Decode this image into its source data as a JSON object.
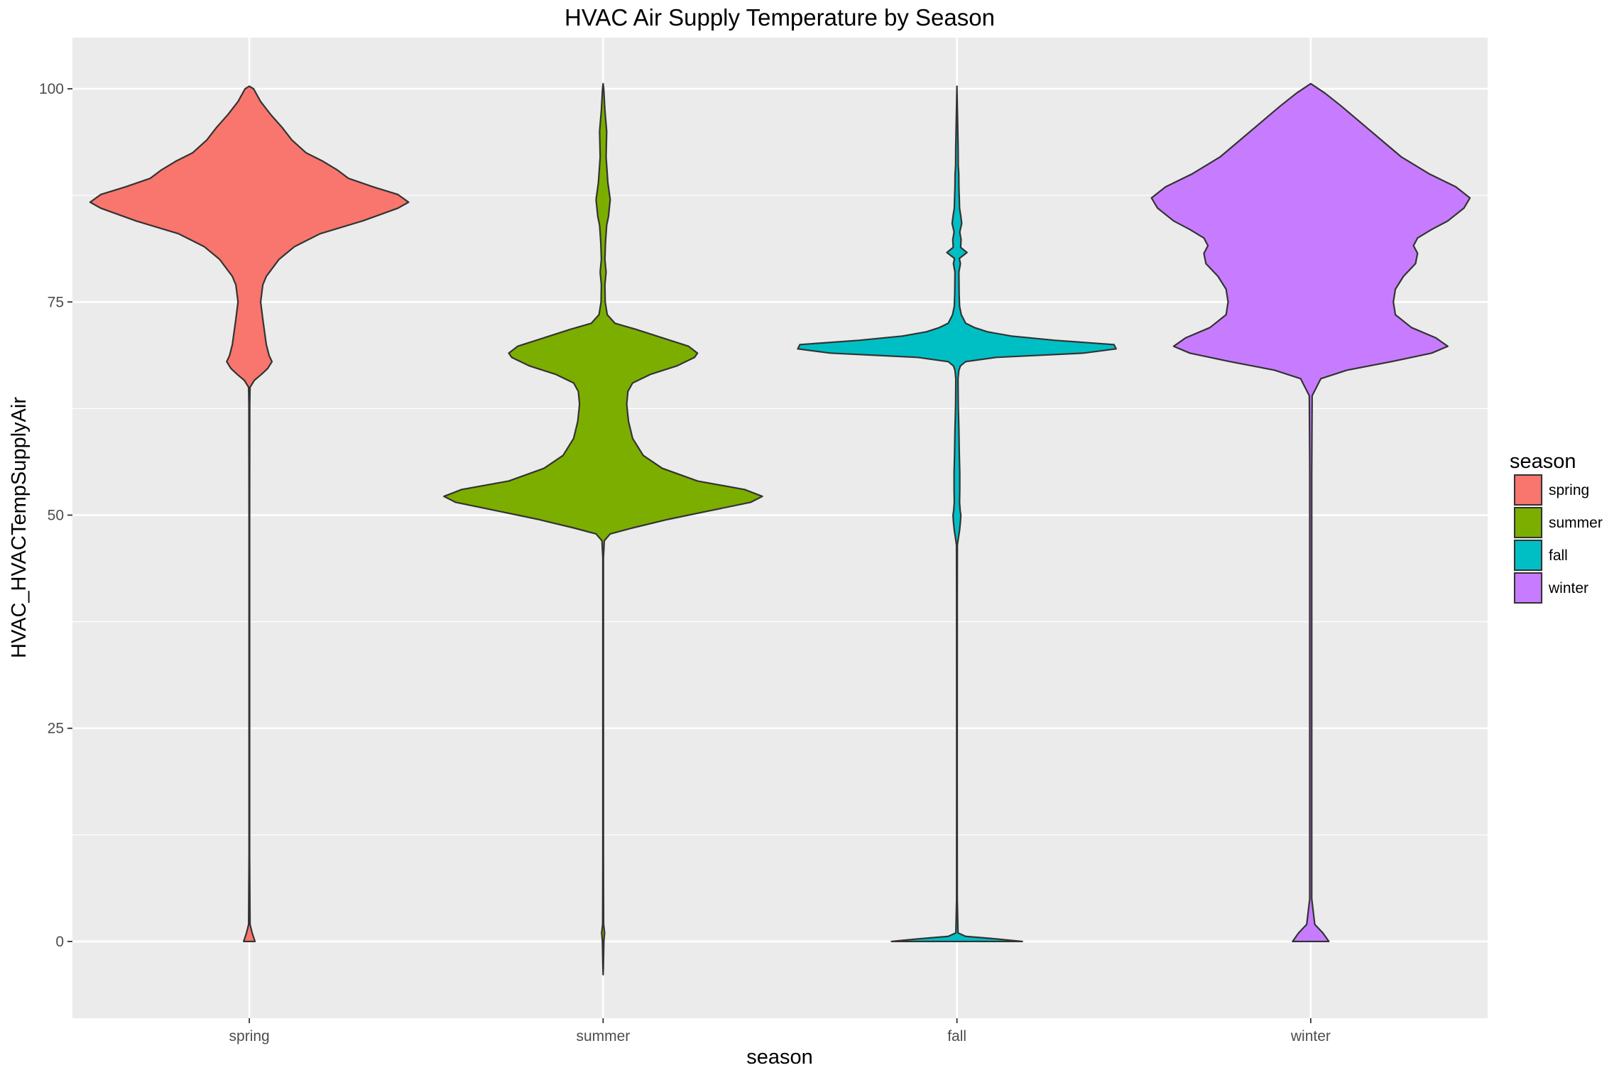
{
  "chart_data": {
    "type": "violin",
    "title": "HVAC Air Supply Temperature by Season",
    "xlabel": "season",
    "ylabel": "HVAC_HVACTempSupplyAir",
    "categories": [
      "spring",
      "summer",
      "fall",
      "winter"
    ],
    "ylim": [
      -9,
      106
    ],
    "yticks": [
      0,
      25,
      50,
      75,
      100
    ],
    "grid": true,
    "legend": {
      "title": "season",
      "placement": "right",
      "entries": [
        "spring",
        "summer",
        "fall",
        "winter"
      ]
    },
    "colors": {
      "spring": "#F8766D",
      "summer": "#7CAE00",
      "fall": "#00BFC4",
      "winter": "#C77CFF"
    },
    "series": [
      {
        "name": "spring",
        "range": [
          0,
          100.3
        ],
        "density": [
          [
            0,
            0.8
          ],
          [
            1,
            0.4
          ],
          [
            2,
            0.1
          ],
          [
            10,
            0.04
          ],
          [
            30,
            0.04
          ],
          [
            50,
            0.04
          ],
          [
            63,
            0.06
          ],
          [
            65,
            0.1
          ],
          [
            65.8,
            0.7
          ],
          [
            66.5,
            1.7
          ],
          [
            67.2,
            2.6
          ],
          [
            68,
            3.2
          ],
          [
            68.7,
            2.8
          ],
          [
            70,
            2.4
          ],
          [
            73,
            1.9
          ],
          [
            75,
            1.6
          ],
          [
            77,
            1.9
          ],
          [
            78,
            2.4
          ],
          [
            80,
            4.2
          ],
          [
            81.5,
            6.4
          ],
          [
            83,
            10
          ],
          [
            84.5,
            16
          ],
          [
            86,
            21
          ],
          [
            86.7,
            22.5
          ],
          [
            87.6,
            21
          ],
          [
            88.5,
            17.5
          ],
          [
            89.5,
            14
          ],
          [
            90.5,
            12.4
          ],
          [
            91.5,
            10.4
          ],
          [
            92.5,
            8
          ],
          [
            94,
            6
          ],
          [
            95.5,
            4.6
          ],
          [
            97,
            3
          ],
          [
            98.5,
            1.6
          ],
          [
            100,
            0.6
          ],
          [
            100.3,
            0
          ]
        ]
      },
      {
        "name": "summer",
        "range": [
          -3.9,
          100.6
        ],
        "density": [
          [
            -3.9,
            0
          ],
          [
            -3,
            0.04
          ],
          [
            0,
            0.12
          ],
          [
            1,
            0.25
          ],
          [
            2,
            0.08
          ],
          [
            10,
            0.05
          ],
          [
            30,
            0.05
          ],
          [
            45,
            0.05
          ],
          [
            47,
            0.2
          ],
          [
            47.8,
            1.2
          ],
          [
            48.5,
            5
          ],
          [
            49.5,
            11
          ],
          [
            50.5,
            18
          ],
          [
            51.5,
            25
          ],
          [
            52.2,
            27
          ],
          [
            53,
            24
          ],
          [
            54,
            16
          ],
          [
            55.5,
            10
          ],
          [
            57,
            6.8
          ],
          [
            59,
            5
          ],
          [
            61,
            4.3
          ],
          [
            63,
            4
          ],
          [
            64.5,
            4.2
          ],
          [
            65.5,
            5
          ],
          [
            66.5,
            8
          ],
          [
            67.5,
            12.5
          ],
          [
            68.5,
            15.5
          ],
          [
            69,
            16
          ],
          [
            69.8,
            14.5
          ],
          [
            70.8,
            10
          ],
          [
            71.8,
            5.5
          ],
          [
            72.5,
            2
          ],
          [
            73.5,
            0.7
          ],
          [
            75,
            0.35
          ],
          [
            77,
            0.3
          ],
          [
            78.5,
            0.5
          ],
          [
            80,
            0.3
          ],
          [
            82,
            0.4
          ],
          [
            84,
            0.6
          ],
          [
            85,
            0.9
          ],
          [
            87,
            1.2
          ],
          [
            89,
            0.8
          ],
          [
            92,
            0.5
          ],
          [
            95,
            0.6
          ],
          [
            97.5,
            0.3
          ],
          [
            100,
            0.1
          ],
          [
            100.6,
            0
          ]
        ]
      },
      {
        "name": "fall",
        "range": [
          0,
          100.3
        ],
        "density": [
          [
            0,
            30
          ],
          [
            0.3,
            18
          ],
          [
            0.6,
            4
          ],
          [
            1,
            0.5
          ],
          [
            5,
            0.15
          ],
          [
            20,
            0.12
          ],
          [
            40,
            0.15
          ],
          [
            46.5,
            0.2
          ],
          [
            47.2,
            0.6
          ],
          [
            48.2,
            1.2
          ],
          [
            49.2,
            1.6
          ],
          [
            50,
            1.8
          ],
          [
            50.5,
            1.5
          ],
          [
            51.5,
            1.2
          ],
          [
            53,
            1.3
          ],
          [
            55,
            1.3
          ],
          [
            57,
            1.1
          ],
          [
            60,
            0.9
          ],
          [
            63,
            0.6
          ],
          [
            66,
            0.5
          ],
          [
            67,
            0.9
          ],
          [
            67.5,
            1.6
          ],
          [
            68,
            4
          ],
          [
            68.5,
            18
          ],
          [
            69,
            58
          ],
          [
            69.5,
            73
          ],
          [
            70,
            72
          ],
          [
            70.5,
            45
          ],
          [
            71,
            25
          ],
          [
            71.5,
            14
          ],
          [
            72,
            8
          ],
          [
            72.5,
            4
          ],
          [
            73.5,
            2
          ],
          [
            74.5,
            1.2
          ],
          [
            76,
            1
          ],
          [
            78.5,
            0.9
          ],
          [
            79.5,
            1.6
          ],
          [
            80.1,
            1.1
          ],
          [
            80.8,
            4.6
          ],
          [
            81.4,
            1.7
          ],
          [
            82.3,
            1.9
          ],
          [
            83.2,
            1.3
          ],
          [
            84.2,
            2.2
          ],
          [
            85.2,
            1.7
          ],
          [
            86,
            1.2
          ],
          [
            87,
            1.1
          ],
          [
            88.5,
            0.9
          ],
          [
            90,
            0.85
          ],
          [
            91,
            0.6
          ],
          [
            93,
            0.55
          ],
          [
            95,
            0.4
          ],
          [
            97,
            0.25
          ],
          [
            99,
            0.1
          ],
          [
            100.3,
            0
          ]
        ]
      },
      {
        "name": "winter",
        "range": [
          0,
          100.6
        ],
        "density": [
          [
            0,
            0.9
          ],
          [
            1,
            0.6
          ],
          [
            2,
            0.2
          ],
          [
            5,
            0.05
          ],
          [
            30,
            0.05
          ],
          [
            55,
            0.05
          ],
          [
            64,
            0.07
          ],
          [
            66,
            0.5
          ],
          [
            67,
            1.8
          ],
          [
            68,
            4
          ],
          [
            69,
            6
          ],
          [
            69.8,
            6.8
          ],
          [
            70.8,
            6.2
          ],
          [
            72,
            5
          ],
          [
            73.5,
            4.2
          ],
          [
            75,
            4.1
          ],
          [
            76.5,
            4.2
          ],
          [
            78,
            4.6
          ],
          [
            79.5,
            5.2
          ],
          [
            80.7,
            5.3
          ],
          [
            81.6,
            5.1
          ],
          [
            82.5,
            5.3
          ],
          [
            83.5,
            6
          ],
          [
            84.5,
            6.8
          ],
          [
            86,
            7.6
          ],
          [
            87.2,
            7.9
          ],
          [
            88.5,
            7.2
          ],
          [
            90,
            5.9
          ],
          [
            92,
            4.5
          ],
          [
            94,
            3.5
          ],
          [
            96,
            2.5
          ],
          [
            98,
            1.5
          ],
          [
            99.5,
            0.7
          ],
          [
            100.6,
            0
          ]
        ]
      }
    ]
  }
}
